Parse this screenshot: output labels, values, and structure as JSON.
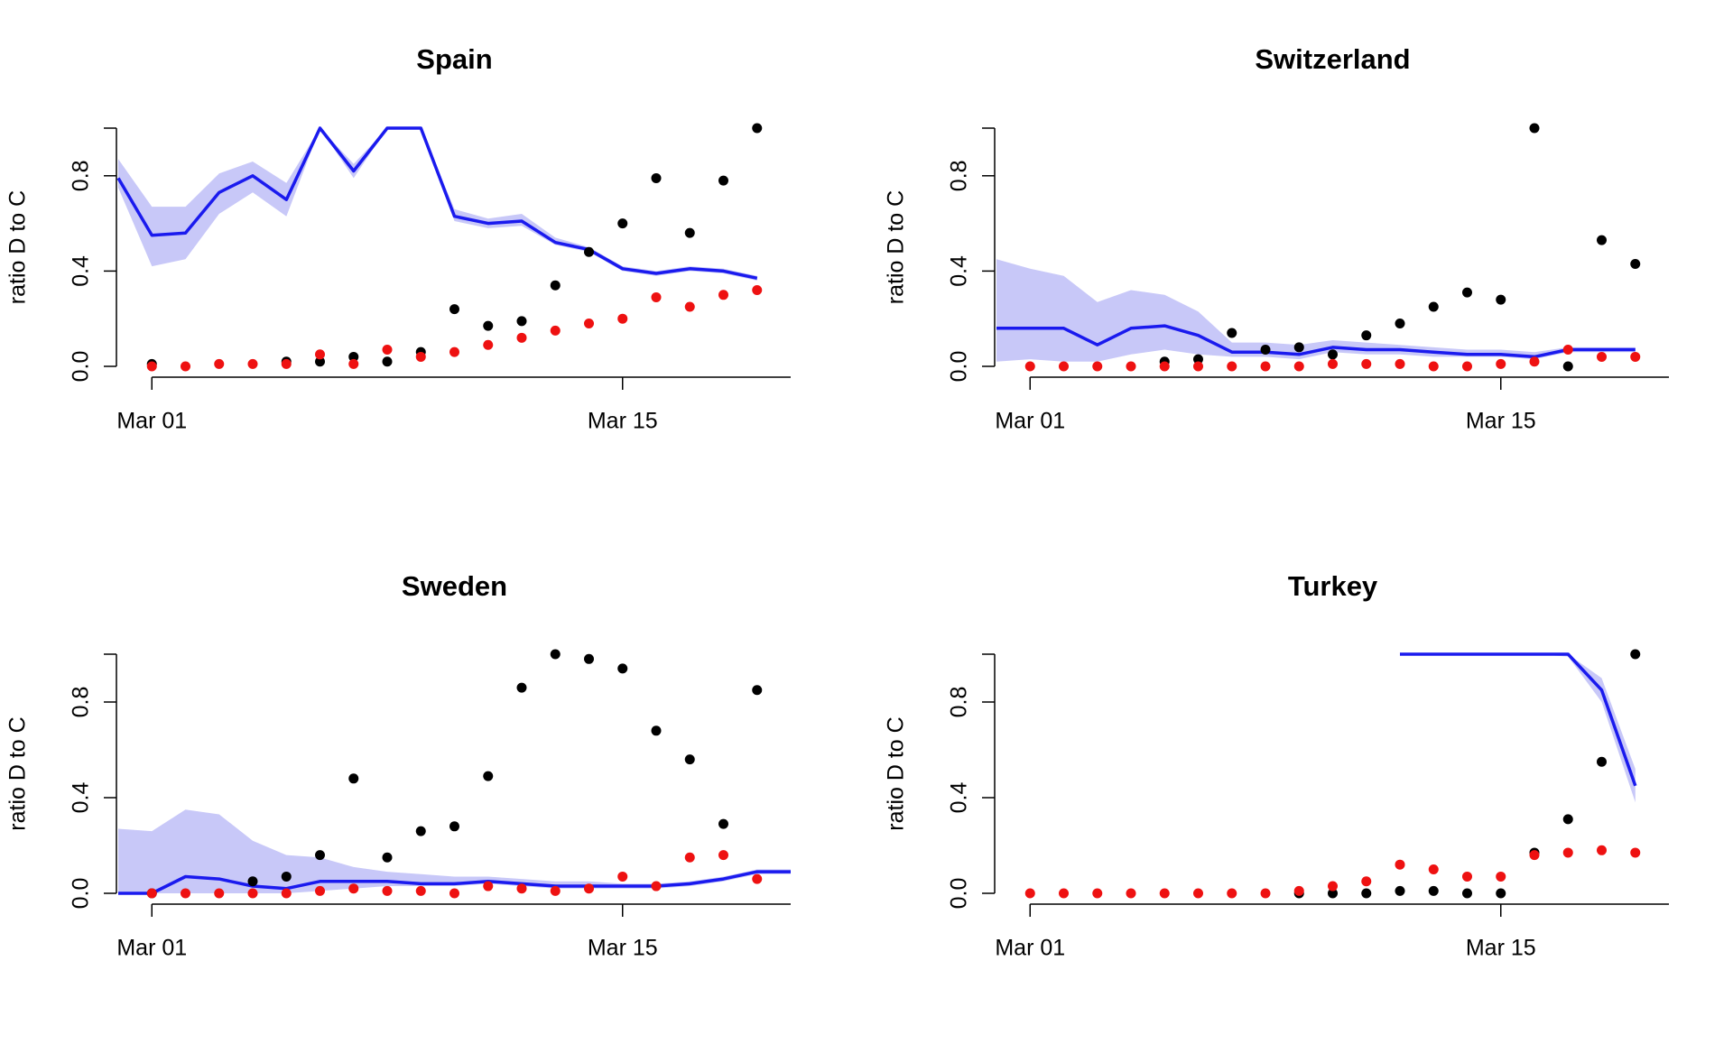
{
  "colors": {
    "line": "#1a1aee",
    "band": "#c8c8f8",
    "observed": "#000000",
    "predicted": "#ee1111"
  },
  "x_tick_labels": [
    "Mar 01",
    "Mar 15"
  ],
  "y_tick_labels": [
    "0.0",
    "0.4",
    "0.8"
  ],
  "chart_data": [
    {
      "type": "line",
      "title": "Spain",
      "ylabel": "ratio D to C",
      "xlim": [
        "2020-02-29",
        "2020-03-20"
      ],
      "ylim": [
        0,
        1
      ],
      "x": [
        "2020-02-29",
        "2020-03-01",
        "2020-03-02",
        "2020-03-03",
        "2020-03-04",
        "2020-03-05",
        "2020-03-06",
        "2020-03-07",
        "2020-03-08",
        "2020-03-09",
        "2020-03-10",
        "2020-03-11",
        "2020-03-12",
        "2020-03-13",
        "2020-03-14",
        "2020-03-15",
        "2020-03-16",
        "2020-03-17",
        "2020-03-18",
        "2020-03-19",
        "2020-03-20"
      ],
      "line": [
        0.79,
        0.55,
        0.56,
        0.73,
        0.8,
        0.7,
        1.0,
        0.82,
        1.0,
        1.0,
        0.63,
        0.6,
        0.61,
        0.52,
        0.49,
        0.41,
        0.39,
        0.41,
        0.4,
        0.37,
        null
      ],
      "band_lower": [
        0.75,
        0.42,
        0.45,
        0.64,
        0.73,
        0.63,
        1.0,
        0.79,
        1.0,
        1.0,
        0.61,
        0.58,
        0.59,
        0.51,
        0.48,
        0.4,
        0.38,
        0.4,
        0.39,
        0.36,
        null
      ],
      "band_upper": [
        0.87,
        0.67,
        0.67,
        0.81,
        0.86,
        0.77,
        1.0,
        0.85,
        1.0,
        1.0,
        0.66,
        0.62,
        0.64,
        0.54,
        0.5,
        0.42,
        0.4,
        0.42,
        0.41,
        0.38,
        null
      ],
      "observed_x": [
        "2020-03-01",
        "2020-03-05",
        "2020-03-06",
        "2020-03-07",
        "2020-03-08",
        "2020-03-09",
        "2020-03-10",
        "2020-03-11",
        "2020-03-12",
        "2020-03-13",
        "2020-03-14",
        "2020-03-15",
        "2020-03-16",
        "2020-03-17",
        "2020-03-18",
        "2020-03-19"
      ],
      "observed": [
        0.01,
        0.02,
        0.02,
        0.04,
        0.02,
        0.06,
        0.24,
        0.17,
        0.19,
        0.34,
        0.48,
        0.6,
        0.79,
        0.56,
        0.78,
        1.0
      ],
      "predicted_x": [
        "2020-03-01",
        "2020-03-02",
        "2020-03-03",
        "2020-03-04",
        "2020-03-05",
        "2020-03-06",
        "2020-03-07",
        "2020-03-08",
        "2020-03-09",
        "2020-03-10",
        "2020-03-11",
        "2020-03-12",
        "2020-03-13",
        "2020-03-14",
        "2020-03-15",
        "2020-03-16",
        "2020-03-17",
        "2020-03-18",
        "2020-03-19"
      ],
      "predicted": [
        0.0,
        0.0,
        0.01,
        0.01,
        0.01,
        0.05,
        0.01,
        0.07,
        0.04,
        0.06,
        0.09,
        0.12,
        0.15,
        0.18,
        0.2,
        0.29,
        0.25,
        0.3,
        0.32
      ]
    },
    {
      "type": "line",
      "title": "Switzerland",
      "ylabel": "ratio D to C",
      "xlim": [
        "2020-02-29",
        "2020-03-20"
      ],
      "ylim": [
        0,
        1
      ],
      "x": [
        "2020-02-29",
        "2020-03-01",
        "2020-03-02",
        "2020-03-03",
        "2020-03-04",
        "2020-03-05",
        "2020-03-06",
        "2020-03-07",
        "2020-03-08",
        "2020-03-09",
        "2020-03-10",
        "2020-03-11",
        "2020-03-12",
        "2020-03-13",
        "2020-03-14",
        "2020-03-15",
        "2020-03-16",
        "2020-03-17",
        "2020-03-18",
        "2020-03-19",
        "2020-03-20"
      ],
      "line": [
        0.16,
        0.16,
        0.16,
        0.09,
        0.16,
        0.17,
        0.13,
        0.06,
        0.06,
        0.05,
        0.08,
        0.07,
        0.07,
        0.06,
        0.05,
        0.05,
        0.04,
        0.07,
        0.07,
        0.07,
        null
      ],
      "band_lower": [
        0.02,
        0.03,
        0.02,
        0.02,
        0.05,
        0.07,
        0.05,
        0.04,
        0.04,
        0.03,
        0.06,
        0.05,
        0.05,
        0.04,
        0.04,
        0.04,
        0.03,
        0.06,
        0.06,
        0.06,
        null
      ],
      "band_upper": [
        0.45,
        0.41,
        0.38,
        0.27,
        0.32,
        0.3,
        0.23,
        0.1,
        0.1,
        0.09,
        0.11,
        0.1,
        0.09,
        0.08,
        0.07,
        0.07,
        0.06,
        0.08,
        0.08,
        0.08,
        null
      ],
      "observed_x": [
        "2020-03-05",
        "2020-03-06",
        "2020-03-07",
        "2020-03-08",
        "2020-03-09",
        "2020-03-10",
        "2020-03-11",
        "2020-03-12",
        "2020-03-13",
        "2020-03-14",
        "2020-03-15",
        "2020-03-16",
        "2020-03-17",
        "2020-03-18",
        "2020-03-19"
      ],
      "observed": [
        0.02,
        0.03,
        0.14,
        0.07,
        0.08,
        0.05,
        0.13,
        0.18,
        0.25,
        0.31,
        0.28,
        1.0,
        0.0,
        0.53,
        0.43
      ],
      "predicted_x": [
        "2020-03-01",
        "2020-03-02",
        "2020-03-03",
        "2020-03-04",
        "2020-03-05",
        "2020-03-06",
        "2020-03-07",
        "2020-03-08",
        "2020-03-09",
        "2020-03-10",
        "2020-03-11",
        "2020-03-12",
        "2020-03-13",
        "2020-03-14",
        "2020-03-15",
        "2020-03-16",
        "2020-03-17",
        "2020-03-18",
        "2020-03-19"
      ],
      "predicted": [
        0.0,
        0.0,
        0.0,
        0.0,
        0.0,
        0.0,
        0.0,
        0.0,
        0.0,
        0.01,
        0.01,
        0.01,
        0.0,
        0.0,
        0.01,
        0.02,
        0.07,
        0.04,
        0.04
      ]
    },
    {
      "type": "line",
      "title": "Sweden",
      "ylabel": "ratio D to C",
      "xlim": [
        "2020-02-29",
        "2020-03-20"
      ],
      "ylim": [
        0,
        1
      ],
      "x": [
        "2020-02-29",
        "2020-03-01",
        "2020-03-02",
        "2020-03-03",
        "2020-03-04",
        "2020-03-05",
        "2020-03-06",
        "2020-03-07",
        "2020-03-08",
        "2020-03-09",
        "2020-03-10",
        "2020-03-11",
        "2020-03-12",
        "2020-03-13",
        "2020-03-14",
        "2020-03-15",
        "2020-03-16",
        "2020-03-17",
        "2020-03-18",
        "2020-03-19",
        "2020-03-20"
      ],
      "line": [
        0.0,
        0.0,
        0.07,
        0.06,
        0.03,
        0.02,
        0.05,
        0.05,
        0.05,
        0.04,
        0.04,
        0.05,
        0.04,
        0.03,
        0.03,
        0.03,
        0.03,
        0.04,
        0.06,
        0.09,
        0.09
      ],
      "band_lower": [
        0.0,
        0.0,
        0.0,
        0.0,
        0.0,
        0.0,
        0.01,
        0.02,
        0.03,
        0.03,
        0.03,
        0.04,
        0.03,
        0.02,
        0.02,
        0.02,
        0.02,
        0.03,
        0.05,
        0.08,
        0.08
      ],
      "band_upper": [
        0.27,
        0.26,
        0.35,
        0.33,
        0.22,
        0.16,
        0.15,
        0.11,
        0.09,
        0.08,
        0.07,
        0.07,
        0.06,
        0.05,
        0.05,
        0.04,
        0.04,
        0.05,
        0.07,
        0.1,
        0.1
      ],
      "observed_x": [
        "2020-03-01",
        "2020-03-04",
        "2020-03-05",
        "2020-03-06",
        "2020-03-07",
        "2020-03-08",
        "2020-03-09",
        "2020-03-10",
        "2020-03-11",
        "2020-03-12",
        "2020-03-13",
        "2020-03-14",
        "2020-03-15",
        "2020-03-16",
        "2020-03-17",
        "2020-03-18",
        "2020-03-19"
      ],
      "observed": [
        0.0,
        0.05,
        0.07,
        0.16,
        0.48,
        0.15,
        0.26,
        0.28,
        0.49,
        0.86,
        1.0,
        0.98,
        0.94,
        0.68,
        0.56,
        0.29,
        0.85
      ],
      "predicted_x": [
        "2020-03-01",
        "2020-03-02",
        "2020-03-03",
        "2020-03-04",
        "2020-03-05",
        "2020-03-06",
        "2020-03-07",
        "2020-03-08",
        "2020-03-09",
        "2020-03-10",
        "2020-03-11",
        "2020-03-12",
        "2020-03-13",
        "2020-03-14",
        "2020-03-15",
        "2020-03-16",
        "2020-03-17",
        "2020-03-18",
        "2020-03-19"
      ],
      "predicted": [
        0.0,
        0.0,
        0.0,
        0.0,
        0.0,
        0.01,
        0.02,
        0.01,
        0.01,
        0.0,
        0.03,
        0.02,
        0.01,
        0.02,
        0.07,
        0.03,
        0.15,
        0.16,
        0.06
      ]
    },
    {
      "type": "line",
      "title": "Turkey",
      "ylabel": "ratio D to C",
      "xlim": [
        "2020-02-29",
        "2020-03-20"
      ],
      "ylim": [
        0,
        1
      ],
      "x": [
        "2020-03-12",
        "2020-03-13",
        "2020-03-14",
        "2020-03-15",
        "2020-03-16",
        "2020-03-17",
        "2020-03-18",
        "2020-03-19"
      ],
      "line": [
        1.0,
        1.0,
        1.0,
        1.0,
        1.0,
        1.0,
        0.85,
        0.45
      ],
      "band_lower": [
        1.0,
        1.0,
        1.0,
        1.0,
        1.0,
        0.99,
        0.8,
        0.38
      ],
      "band_upper": [
        1.0,
        1.0,
        1.0,
        1.0,
        1.0,
        1.0,
        0.9,
        0.52
      ],
      "observed_x": [
        "2020-03-09",
        "2020-03-10",
        "2020-03-11",
        "2020-03-12",
        "2020-03-13",
        "2020-03-14",
        "2020-03-15",
        "2020-03-16",
        "2020-03-17",
        "2020-03-18",
        "2020-03-19"
      ],
      "observed": [
        0.0,
        0.0,
        0.0,
        0.01,
        0.01,
        0.0,
        0.0,
        0.17,
        0.31,
        0.55,
        1.0
      ],
      "predicted_x": [
        "2020-03-01",
        "2020-03-02",
        "2020-03-03",
        "2020-03-04",
        "2020-03-05",
        "2020-03-06",
        "2020-03-07",
        "2020-03-08",
        "2020-03-09",
        "2020-03-10",
        "2020-03-11",
        "2020-03-12",
        "2020-03-13",
        "2020-03-14",
        "2020-03-15",
        "2020-03-16",
        "2020-03-17",
        "2020-03-18",
        "2020-03-19"
      ],
      "predicted": [
        0.0,
        0.0,
        0.0,
        0.0,
        0.0,
        0.0,
        0.0,
        0.0,
        0.01,
        0.03,
        0.05,
        0.12,
        0.1,
        0.07,
        0.07,
        0.16,
        0.17,
        0.18,
        0.17
      ]
    }
  ]
}
